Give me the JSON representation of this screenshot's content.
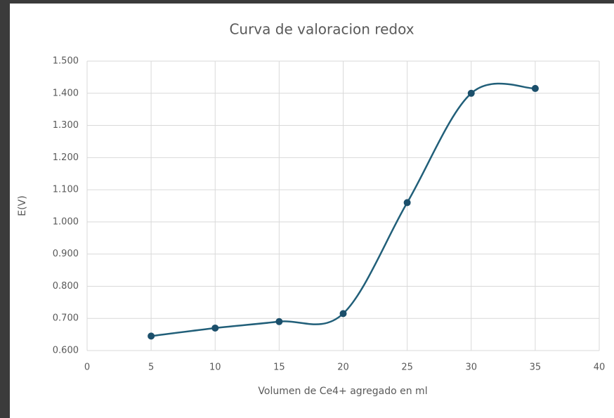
{
  "chart_data": {
    "type": "scatter",
    "title": "Curva de valoracion redox",
    "x_label": "Volumen de Ce4+ agregado en ml",
    "y_label": "E(V)",
    "series": [
      {
        "name": "E(V)",
        "color": "#215f79",
        "x": [
          5,
          10,
          15,
          20,
          25,
          30,
          35
        ],
        "values": [
          0.645,
          0.67,
          0.69,
          0.715,
          1.06,
          1.4,
          1.415
        ]
      }
    ],
    "smooth": true,
    "xlim": [
      0,
      40
    ],
    "xticks": [
      0,
      5,
      10,
      15,
      20,
      25,
      30,
      35,
      40
    ],
    "ylim": [
      0.6,
      1.5
    ],
    "yticks": [
      {
        "value": 0.6,
        "label": "0.600"
      },
      {
        "value": 0.7,
        "label": "0.700"
      },
      {
        "value": 0.8,
        "label": "0.800"
      },
      {
        "value": 0.9,
        "label": "0.900"
      },
      {
        "value": 1.0,
        "label": "1.000"
      },
      {
        "value": 1.1,
        "label": "1.100"
      },
      {
        "value": 1.2,
        "label": "1.200"
      },
      {
        "value": 1.3,
        "label": "1.300"
      },
      {
        "value": 1.4,
        "label": "1.400"
      },
      {
        "value": 1.5,
        "label": "1.500"
      }
    ],
    "grid": true
  }
}
